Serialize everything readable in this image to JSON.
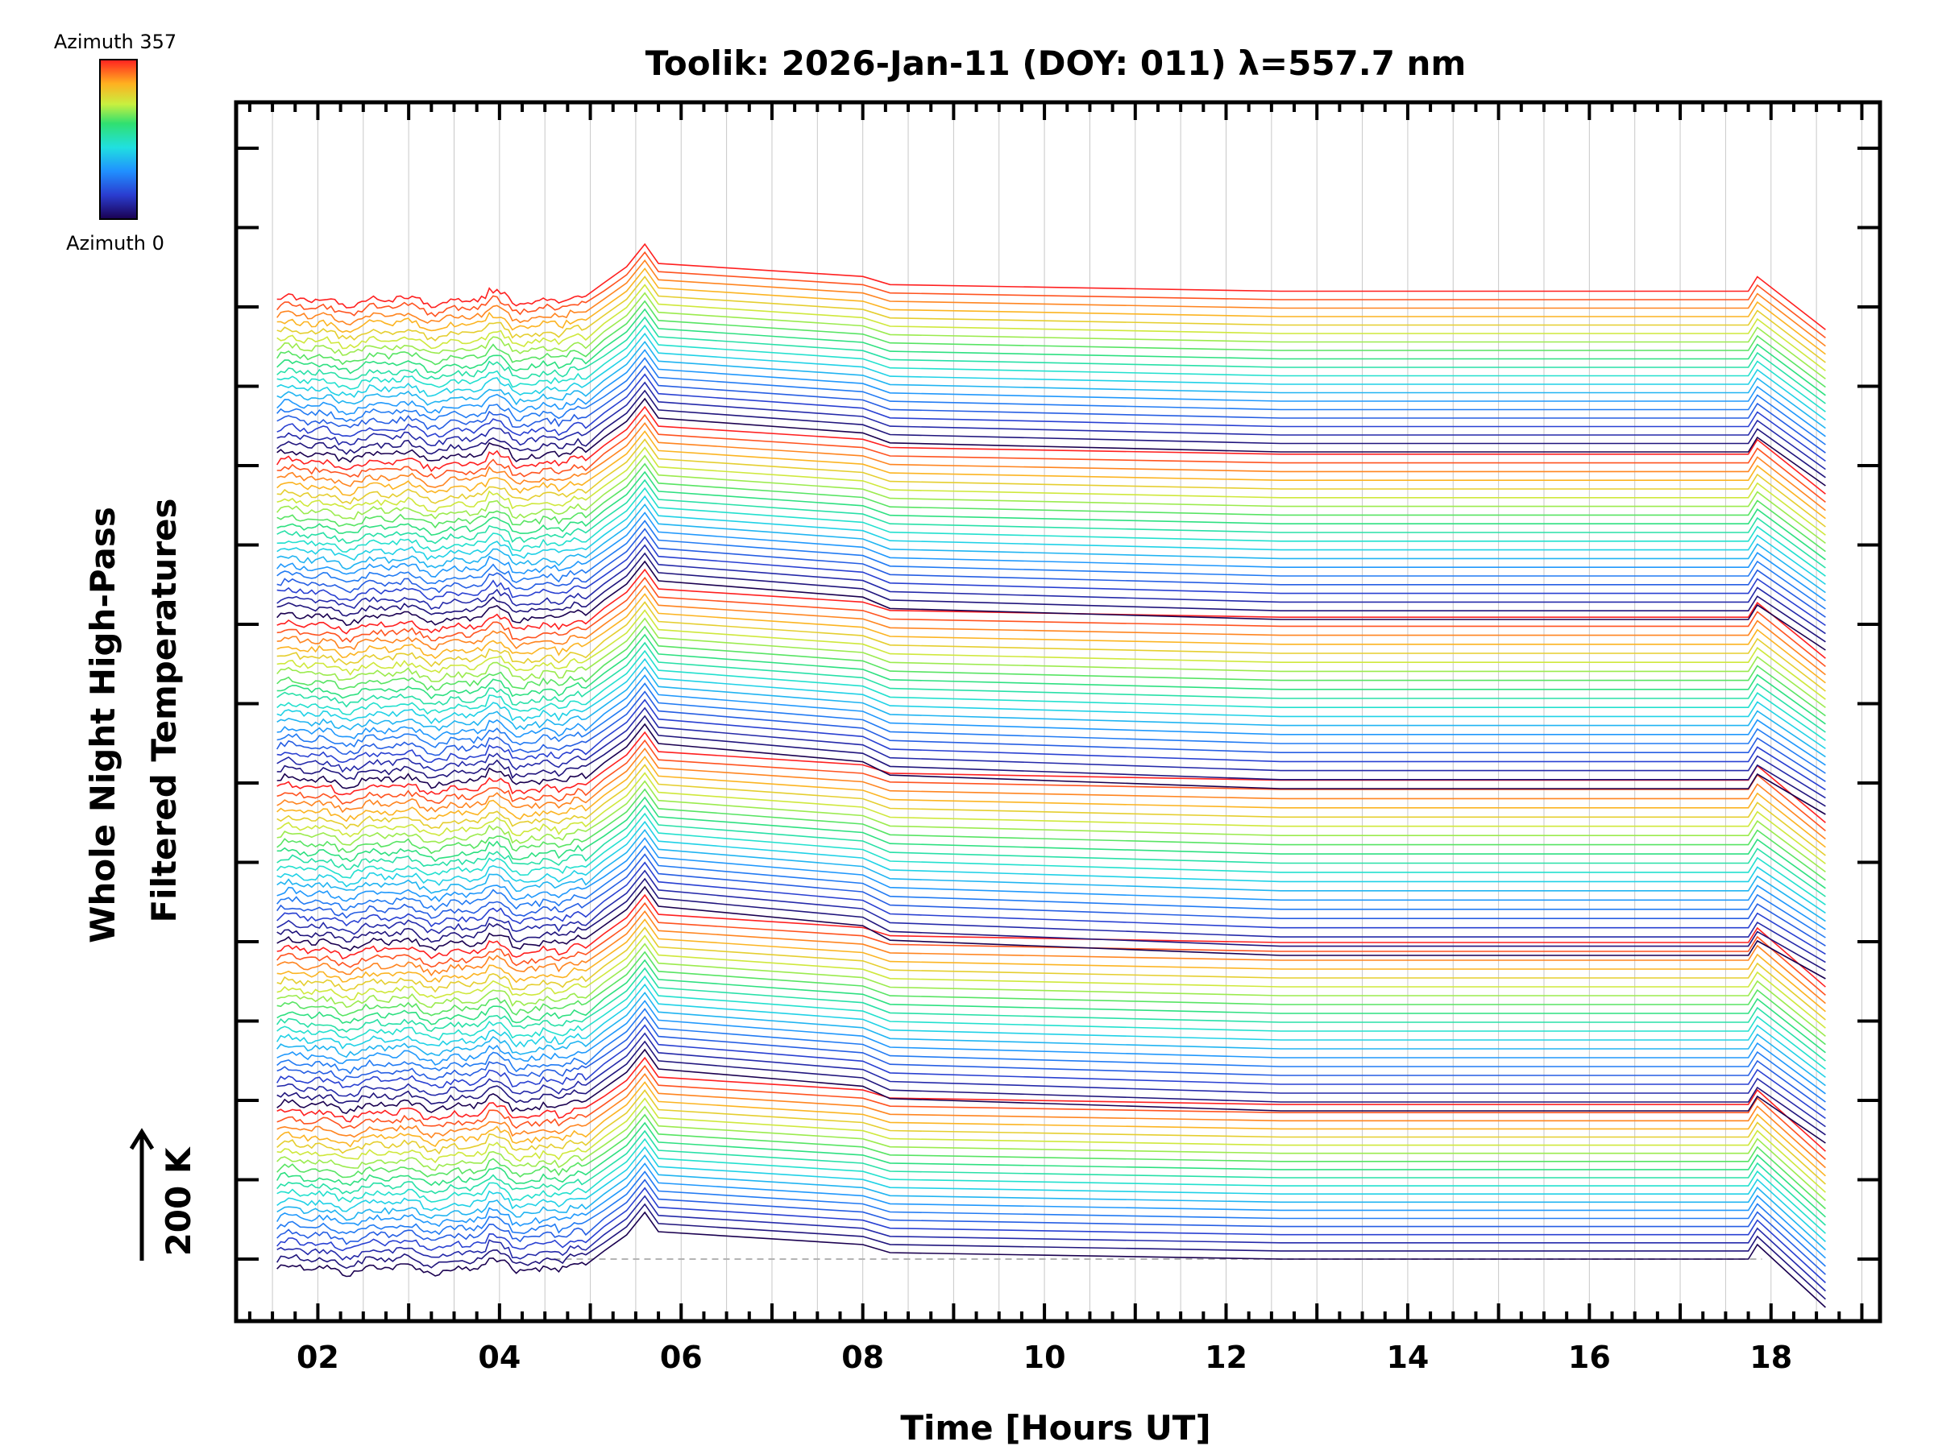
{
  "chart_data": {
    "type": "line",
    "title": "Toolik: 2026-Jan-11 (DOY: 011) λ=557.7 nm",
    "xlabel": "Time [Hours UT]",
    "ylabel_line1": "Whole Night High-Pass",
    "ylabel_line2": "Filtered Temperatures",
    "scale_label": "200 K",
    "xlim": [
      1.1,
      19.2
    ],
    "x_tick_labels": [
      "02",
      "04",
      "06",
      "08",
      "10",
      "12",
      "14",
      "16",
      "18"
    ],
    "x_tick_values": [
      2,
      4,
      6,
      8,
      10,
      12,
      14,
      16,
      18
    ],
    "legend": {
      "top": "Azimuth  357",
      "bottom": "Azimuth  0"
    },
    "colors": {
      "axis": "#000000",
      "grid": "#c8c8c8",
      "baseline": "#b4b4b4"
    },
    "series_count": 120,
    "azimuth_range": [
      0,
      357
    ]
  }
}
